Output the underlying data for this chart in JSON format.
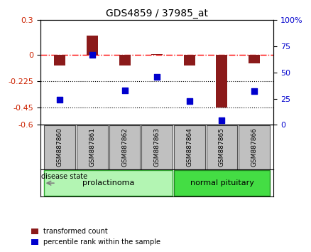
{
  "title": "GDS4859 / 37985_at",
  "samples": [
    "GSM887860",
    "GSM887861",
    "GSM887862",
    "GSM887863",
    "GSM887864",
    "GSM887865",
    "GSM887866"
  ],
  "transformed_count": [
    -0.09,
    0.17,
    -0.09,
    0.01,
    -0.09,
    -0.45,
    -0.07
  ],
  "percentile_rank_left": [
    -0.385,
    0.005,
    -0.305,
    -0.185,
    -0.395,
    -0.56,
    -0.31
  ],
  "ylim_left": [
    -0.6,
    0.3
  ],
  "ylim_right": [
    0,
    100
  ],
  "yticks_left": [
    0.3,
    0,
    -0.225,
    -0.45,
    -0.6
  ],
  "yticks_right": [
    100,
    75,
    50,
    25,
    0
  ],
  "ytick_left_labels": [
    "0.3",
    "0",
    "-0.225",
    "-0.45",
    "-0.6"
  ],
  "ytick_right_labels": [
    "100%",
    "75",
    "50",
    "25",
    "0"
  ],
  "hline_y": 0,
  "dotted_lines": [
    -0.225,
    -0.45
  ],
  "bar_color": "#8B1A1A",
  "dot_color": "#0000CD",
  "disease_state_label": "disease state",
  "prolactinoma_label": "prolactinoma",
  "normal_pituitary_label": "normal pituitary",
  "legend_bar_label": "transformed count",
  "legend_dot_label": "percentile rank within the sample",
  "bg_color_prolactinoma": "#b3f5b3",
  "bg_color_normal": "#44dd44",
  "prolactinoma_edge": "#33aa33",
  "normal_edge": "#228822",
  "sample_box_color": "#c0c0c0",
  "sample_box_edge": "#555555"
}
